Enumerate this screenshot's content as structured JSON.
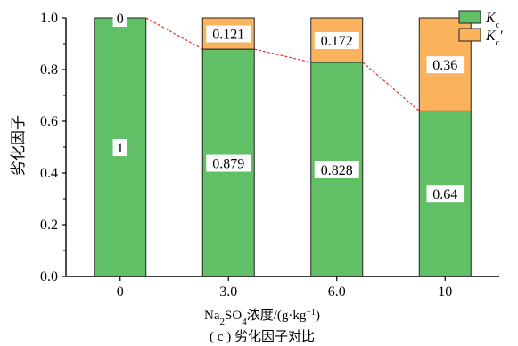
{
  "chart_data": {
    "type": "bar",
    "stacked": true,
    "categories": [
      "0",
      "3.0",
      "6.0",
      "10"
    ],
    "series": [
      {
        "name": "K_c",
        "values": [
          1,
          0.879,
          0.828,
          0.64
        ],
        "labels": [
          "1",
          "0.879",
          "0.828",
          "0.64"
        ],
        "color": "#61c065"
      },
      {
        "name": "K_c'",
        "values": [
          0,
          0.121,
          0.172,
          0.36
        ],
        "labels": [
          "0",
          "0.121",
          "0.172",
          "0.36"
        ],
        "color": "#fbb25c"
      }
    ],
    "trend_line": {
      "values": [
        1,
        0.879,
        0.828,
        0.64
      ],
      "color": "#e8322b",
      "style": "dashed"
    },
    "ylim": [
      0,
      1.0
    ],
    "yticks": [
      "0.0",
      "0.2",
      "0.4",
      "0.6",
      "0.8",
      "1.0"
    ],
    "ylabel": "劣化因子",
    "xlabel": {
      "prefix": "Na",
      "sub1": "2",
      "mid": "SO",
      "sub2": "4",
      "rest": "浓度/(g·kg",
      "sup": "−1",
      "close": ")"
    },
    "caption": "( c ) 劣化因子对比",
    "legend": {
      "position": "top-right",
      "items": [
        {
          "letter": "K",
          "sub": "c",
          "prime": ""
        },
        {
          "letter": "K",
          "sub": "c",
          "prime": "′"
        }
      ]
    },
    "grid": false
  }
}
